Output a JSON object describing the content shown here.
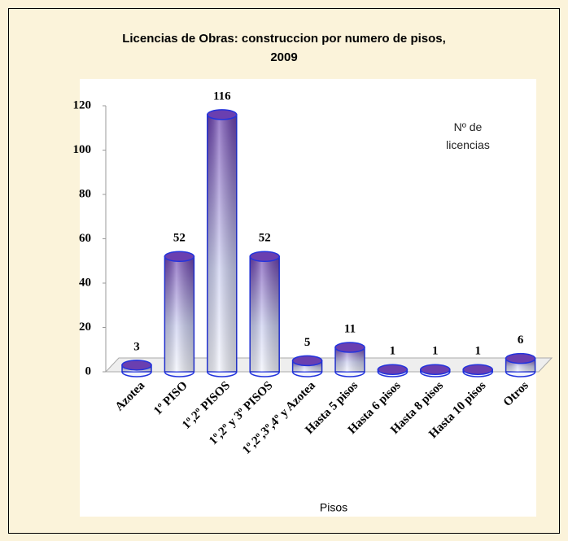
{
  "chart_data": {
    "type": "bar",
    "title": [
      "Licencias de Obras: construccion por numero de pisos,",
      "2009"
    ],
    "categories": [
      "Azotea",
      "1º PISO",
      "1º,2º  PISOS",
      "1º,2º y 3º PISOS",
      "1º,2º,3º,4º y Azotea",
      "Hasta 5 pisos",
      "Hasta 6 pisos",
      "Hasta 8 pisos",
      "Hasta 10 pisos",
      "Otros"
    ],
    "values": [
      3,
      52,
      116,
      52,
      5,
      11,
      1,
      1,
      1,
      6
    ],
    "color": "#6a3fb0",
    "ylim": [
      0,
      120
    ],
    "yticks": [
      0,
      20,
      40,
      60,
      80,
      100,
      120
    ],
    "x_label": "Pisos",
    "annotation": "Nº de licencias"
  }
}
